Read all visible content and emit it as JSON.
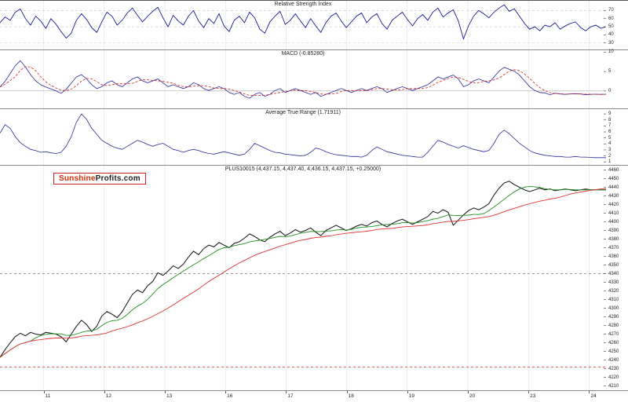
{
  "logo": {
    "sunshine": "Sunshine",
    "profits": "Profits.com"
  },
  "x_axis": {
    "labels": [
      "11",
      "12",
      "13",
      "16",
      "17",
      "18",
      "19",
      "20",
      "23",
      "24"
    ],
    "positions": [
      0.072,
      0.172,
      0.272,
      0.372,
      0.472,
      0.572,
      0.672,
      0.772,
      0.872,
      0.972
    ]
  },
  "chart_data": [
    {
      "type": "line",
      "title": "Relative Strength Index",
      "ylim": [
        22,
        82
      ],
      "yticks": [
        70,
        60,
        50,
        40,
        30
      ],
      "levels": [
        {
          "value": 70,
          "color": "#cccccc",
          "dash": true
        },
        {
          "value": 50,
          "color": "#cccccc",
          "dash": true
        },
        {
          "value": 30,
          "color": "#cccccc",
          "dash": true
        }
      ],
      "series": [
        {
          "name": "RSI",
          "color": "#00008b",
          "width": 0.8,
          "values": [
            55,
            62,
            58,
            68,
            72,
            60,
            52,
            63,
            57,
            48,
            60,
            53,
            44,
            36,
            42,
            58,
            66,
            59,
            49,
            43,
            56,
            68,
            63,
            52,
            58,
            67,
            73,
            64,
            56,
            63,
            69,
            74,
            61,
            50,
            64,
            57,
            52,
            63,
            70,
            57,
            49,
            60,
            54,
            66,
            51,
            44,
            58,
            63,
            55,
            68,
            61,
            47,
            42,
            56,
            63,
            69,
            53,
            58,
            66,
            57,
            49,
            60,
            51,
            43,
            55,
            63,
            67,
            57,
            49,
            56,
            63,
            67,
            55,
            62,
            66,
            54,
            47,
            58,
            63,
            68,
            59,
            51,
            60,
            65,
            58,
            68,
            73,
            62,
            67,
            71,
            57,
            35,
            51,
            63,
            70,
            66,
            61,
            68,
            73,
            77,
            69,
            72,
            63,
            54,
            47,
            50,
            45,
            52,
            50,
            55,
            47,
            51,
            54,
            56,
            49,
            45,
            50,
            52,
            48,
            50
          ]
        }
      ]
    },
    {
      "type": "line",
      "title": "MACD (-0.85280)",
      "ylim": [
        -4.5,
        10.5
      ],
      "yticks": [
        10,
        5,
        0
      ],
      "levels": [
        {
          "value": 0,
          "color": "#aaaaaa",
          "dash": false
        }
      ],
      "series": [
        {
          "name": "MACD",
          "color": "#2a2a9a",
          "width": 0.8,
          "values": [
            1.0,
            2.5,
            4.5,
            6.5,
            7.8,
            6.2,
            4.2,
            2.6,
            1.6,
            1.0,
            0.5,
            0.0,
            -0.6,
            0.4,
            2.0,
            3.6,
            4.2,
            3.1,
            1.6,
            0.6,
            1.1,
            2.1,
            2.6,
            1.6,
            1.1,
            2.1,
            3.1,
            3.6,
            2.6,
            2.1,
            2.6,
            3.1,
            2.1,
            1.1,
            1.6,
            1.1,
            0.6,
            1.1,
            2.1,
            1.6,
            0.6,
            0.1,
            0.6,
            1.1,
            0.6,
            -0.4,
            -0.9,
            -0.4,
            -1.4,
            -1.9,
            -0.9,
            -0.4,
            -1.4,
            -0.9,
            0.1,
            0.6,
            -0.4,
            0.1,
            0.6,
            0.1,
            -0.4,
            -0.9,
            -0.4,
            -1.4,
            -0.9,
            -0.4,
            0.1,
            0.6,
            0.1,
            -0.4,
            0.1,
            0.6,
            0.1,
            0.6,
            1.1,
            0.6,
            -0.4,
            0.1,
            0.6,
            1.1,
            0.6,
            0.1,
            0.6,
            1.1,
            1.6,
            2.6,
            3.6,
            3.1,
            3.6,
            4.1,
            3.1,
            1.1,
            1.6,
            2.6,
            3.1,
            2.6,
            2.1,
            3.6,
            5.1,
            6.1,
            5.6,
            5.1,
            4.1,
            2.6,
            1.1,
            0.1,
            -0.4,
            -0.5,
            -1.0,
            -0.6,
            -0.8,
            -0.9,
            -0.8,
            -0.7,
            -0.8,
            -1.0,
            -0.9,
            -0.85,
            -0.9,
            -0.85
          ]
        },
        {
          "name": "Signal",
          "color": "#cc2222",
          "width": 0.8,
          "dash": true,
          "derive": "sma",
          "window": 4
        }
      ]
    },
    {
      "type": "line",
      "title": "Average True Range (1.71911)",
      "ylim": [
        0.5,
        9.8
      ],
      "yticks": [
        9,
        8,
        7,
        6,
        5,
        4,
        3,
        2,
        1
      ],
      "levels": [],
      "series": [
        {
          "name": "ATR",
          "color": "#2a2a9a",
          "width": 0.8,
          "values": [
            5.8,
            7.2,
            6.6,
            5.2,
            4.2,
            3.6,
            3.1,
            2.9,
            2.6,
            2.7,
            2.5,
            2.4,
            2.6,
            3.6,
            5.2,
            7.6,
            9.0,
            8.1,
            6.6,
            5.6,
            4.6,
            4.1,
            3.6,
            3.3,
            3.1,
            3.6,
            4.1,
            4.6,
            4.3,
            3.9,
            3.6,
            3.9,
            4.1,
            3.6,
            3.1,
            2.9,
            2.6,
            2.9,
            3.1,
            2.9,
            2.6,
            2.4,
            2.3,
            2.5,
            2.7,
            2.5,
            2.3,
            2.1,
            2.3,
            3.1,
            4.1,
            3.7,
            3.3,
            2.9,
            2.6,
            2.5,
            2.3,
            2.2,
            2.1,
            2.0,
            2.1,
            2.6,
            3.3,
            3.1,
            2.7,
            2.4,
            2.2,
            2.1,
            2.0,
            1.9,
            1.9,
            1.8,
            2.1,
            2.9,
            3.5,
            3.1,
            2.7,
            2.5,
            2.3,
            2.1,
            2.0,
            1.9,
            1.8,
            1.8,
            2.6,
            3.6,
            4.6,
            4.3,
            3.9,
            3.6,
            3.3,
            3.7,
            3.4,
            3.1,
            2.9,
            2.7,
            2.9,
            4.1,
            5.6,
            6.3,
            5.7,
            4.9,
            4.1,
            3.5,
            2.9,
            2.5,
            2.3,
            2.1,
            2.0,
            1.9,
            1.9,
            1.8,
            1.8,
            1.9,
            1.8,
            1.8,
            1.75,
            1.7,
            1.7,
            1.7
          ]
        }
      ]
    },
    {
      "type": "line",
      "title": "PLUS10015 (4,437.15, 4,437.40, 4,436.15, 4,437.15, +0.25000)",
      "ylim": [
        4205,
        4465
      ],
      "yticks": [
        4460,
        4450,
        4440,
        4430,
        4420,
        4410,
        4400,
        4390,
        4380,
        4370,
        4360,
        4350,
        4340,
        4330,
        4320,
        4310,
        4300,
        4290,
        4280,
        4270,
        4260,
        4250,
        4240,
        4230,
        4220,
        4210
      ],
      "levels": [
        {
          "value": 4340,
          "color": "#777777",
          "dash": true
        },
        {
          "value": 4232,
          "color": "#cc0000",
          "dash": true
        }
      ],
      "series": [
        {
          "name": "Close",
          "color": "#111111",
          "width": 1,
          "values": [
            4243,
            4252,
            4260,
            4267,
            4271,
            4268,
            4272,
            4270,
            4269,
            4272,
            4271,
            4270,
            4267,
            4261,
            4270,
            4279,
            4286,
            4281,
            4273,
            4279,
            4291,
            4296,
            4293,
            4289,
            4296,
            4306,
            4316,
            4321,
            4318,
            4326,
            4331,
            4341,
            4338,
            4343,
            4349,
            4346,
            4351,
            4359,
            4366,
            4362,
            4369,
            4373,
            4371,
            4376,
            4373,
            4370,
            4375,
            4377,
            4381,
            4386,
            4383,
            4379,
            4377,
            4382,
            4386,
            4389,
            4384,
            4387,
            4391,
            4388,
            4390,
            4393,
            4388,
            4384,
            4390,
            4393,
            4396,
            4393,
            4390,
            4392,
            4395,
            4397,
            4395,
            4399,
            4401,
            4397,
            4394,
            4398,
            4401,
            4403,
            4400,
            4397,
            4400,
            4403,
            4406,
            4412,
            4410,
            4414,
            4411,
            4396,
            4402,
            4408,
            4413,
            4416,
            4414,
            4417,
            4421,
            4431,
            4439,
            4445,
            4447,
            4443,
            4440,
            4437,
            4435,
            4437,
            4439,
            4437,
            4438,
            4436,
            4437,
            4438,
            4437,
            4436,
            4437,
            4438,
            4437,
            4437,
            4437,
            4437
          ]
        },
        {
          "name": "MA fast",
          "color": "#1f8f1f",
          "width": 0.9,
          "derive": "sma",
          "window": 7
        },
        {
          "name": "MA slow",
          "color": "#e03030",
          "width": 0.9,
          "derive": "sma",
          "window": 22
        }
      ]
    }
  ]
}
